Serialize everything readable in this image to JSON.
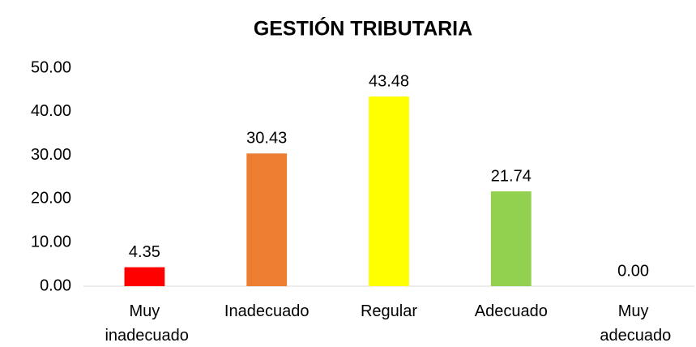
{
  "chart_data": {
    "type": "bar",
    "title": "GESTIÓN TRIBUTARIA",
    "categories": [
      "Muy inadecuado",
      "Inadecuado",
      "Regular",
      "Adecuado",
      "Muy adecuado"
    ],
    "values": [
      4.35,
      30.43,
      43.48,
      21.74,
      0
    ],
    "value_labels": [
      "4.35",
      "30.43",
      "43.48",
      "21.74",
      "0.00"
    ],
    "colors": [
      "#ff0000",
      "#ed7d31",
      "#ffff00",
      "#92d050",
      "#00b050"
    ],
    "ylim": [
      0,
      50
    ],
    "yticks": [
      {
        "value": 0,
        "label": "0.00"
      },
      {
        "value": 10,
        "label": "10.00"
      },
      {
        "value": 20,
        "label": "20.00"
      },
      {
        "value": 30,
        "label": "30.00"
      },
      {
        "value": 40,
        "label": "40.00"
      },
      {
        "value": 50,
        "label": "50.00"
      }
    ],
    "grid": false
  }
}
